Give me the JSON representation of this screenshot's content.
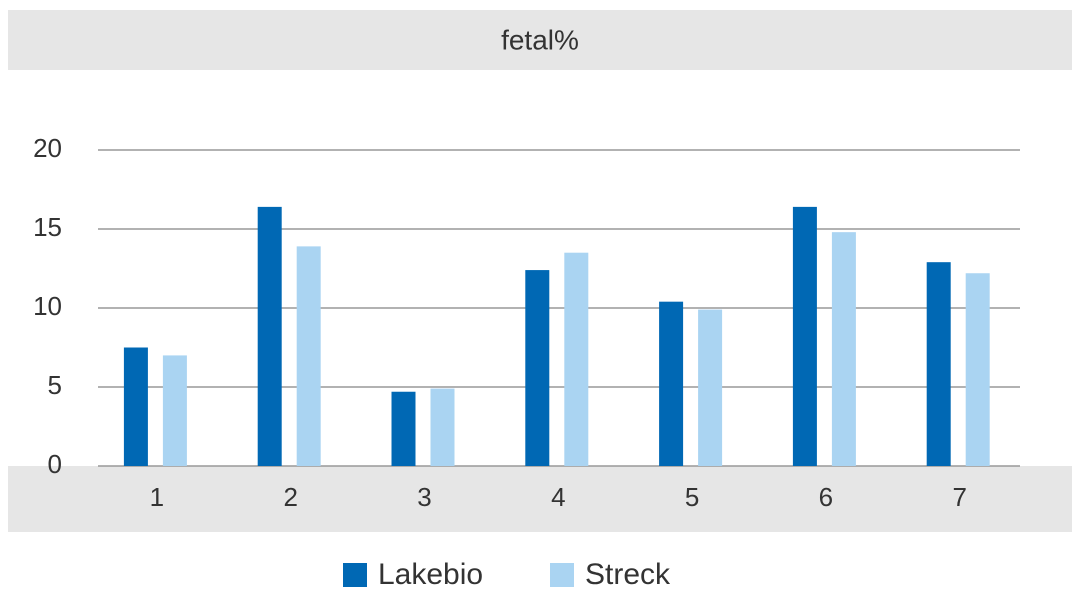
{
  "chart_data": {
    "type": "bar",
    "title": "fetal%",
    "categories": [
      "1",
      "2",
      "3",
      "4",
      "5",
      "6",
      "7"
    ],
    "series": [
      {
        "name": "Lakebio",
        "color": "#0068b4",
        "values": [
          7.5,
          16.4,
          4.7,
          12.4,
          10.4,
          16.4,
          12.9
        ]
      },
      {
        "name": "Streck",
        "color": "#aad4f2",
        "values": [
          7.0,
          13.9,
          4.9,
          13.5,
          9.9,
          14.8,
          12.2
        ]
      }
    ],
    "ylim": [
      0,
      20
    ],
    "yticks": [
      0,
      5,
      10,
      15,
      20
    ],
    "grid": true,
    "legend": "bottom"
  }
}
